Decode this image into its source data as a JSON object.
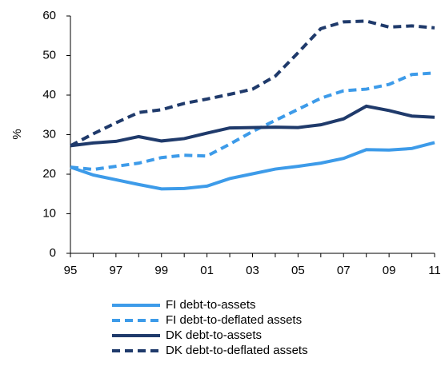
{
  "chart_data": {
    "type": "line",
    "y_label": "%",
    "categories": [
      "95",
      null,
      "97",
      null,
      "99",
      null,
      "01",
      null,
      "03",
      null,
      "05",
      null,
      "07",
      null,
      "09",
      null,
      "11"
    ],
    "ylim": [
      0,
      60
    ],
    "yticks": [
      0,
      10,
      20,
      30,
      40,
      50,
      60
    ],
    "grid": false,
    "legend": "bottom",
    "series": [
      {
        "name": "FI debt-to-assets",
        "color": "#3d9be9",
        "dash": false,
        "values": [
          21.8,
          19.8,
          18.6,
          17.4,
          16.3,
          16.4,
          17.0,
          18.9,
          20.1,
          21.3,
          22.0,
          22.8,
          24.0,
          26.2,
          26.1,
          26.5,
          28.0
        ]
      },
      {
        "name": "FI debt-to-deflated assets",
        "color": "#3d9be9",
        "dash": true,
        "values": [
          21.8,
          21.2,
          22.0,
          22.8,
          24.2,
          24.8,
          24.6,
          27.6,
          30.8,
          33.6,
          36.4,
          39.2,
          41.1,
          41.5,
          42.7,
          45.2,
          45.6
        ]
      },
      {
        "name": "DK debt-to-assets",
        "color": "#1f3a6b",
        "dash": false,
        "values": [
          27.2,
          27.9,
          28.3,
          29.5,
          28.4,
          29.0,
          30.4,
          31.7,
          31.8,
          31.9,
          31.8,
          32.5,
          34.0,
          37.2,
          36.1,
          34.7,
          34.4
        ]
      },
      {
        "name": "DK debt-to-deflated assets",
        "color": "#1f3a6b",
        "dash": true,
        "values": [
          27.2,
          30.2,
          33.0,
          35.6,
          36.3,
          37.9,
          39.0,
          40.2,
          41.5,
          44.8,
          50.7,
          56.8,
          58.5,
          58.7,
          57.2,
          57.5,
          57.0
        ]
      }
    ]
  }
}
